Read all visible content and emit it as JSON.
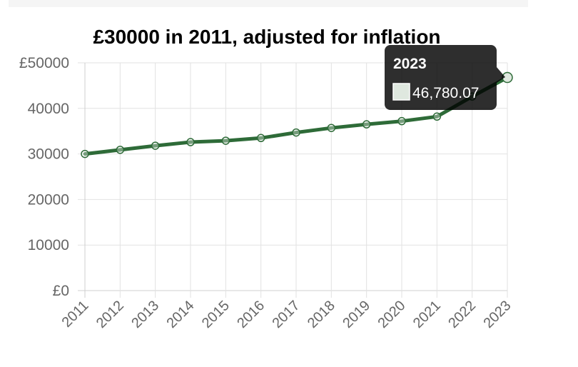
{
  "chart_data": {
    "type": "line",
    "title": "£30000 in 2011, adjusted for inflation",
    "categories": [
      "2011",
      "2012",
      "2013",
      "2014",
      "2015",
      "2016",
      "2017",
      "2018",
      "2019",
      "2020",
      "2021",
      "2022",
      "2023"
    ],
    "series": [
      {
        "values": [
          30000,
          30900,
          31800,
          32600,
          32900,
          33500,
          34700,
          35700,
          36500,
          37200,
          38200,
          42600,
          46780.07
        ],
        "color": "#2e6b38"
      }
    ],
    "y_ticks": [
      "£0",
      "10000",
      "20000",
      "30000",
      "40000",
      "£50000"
    ],
    "ylim": [
      0,
      50000
    ],
    "grid": true,
    "legend": "none",
    "tooltip": {
      "title": "2023",
      "value": "46,780.07"
    }
  }
}
